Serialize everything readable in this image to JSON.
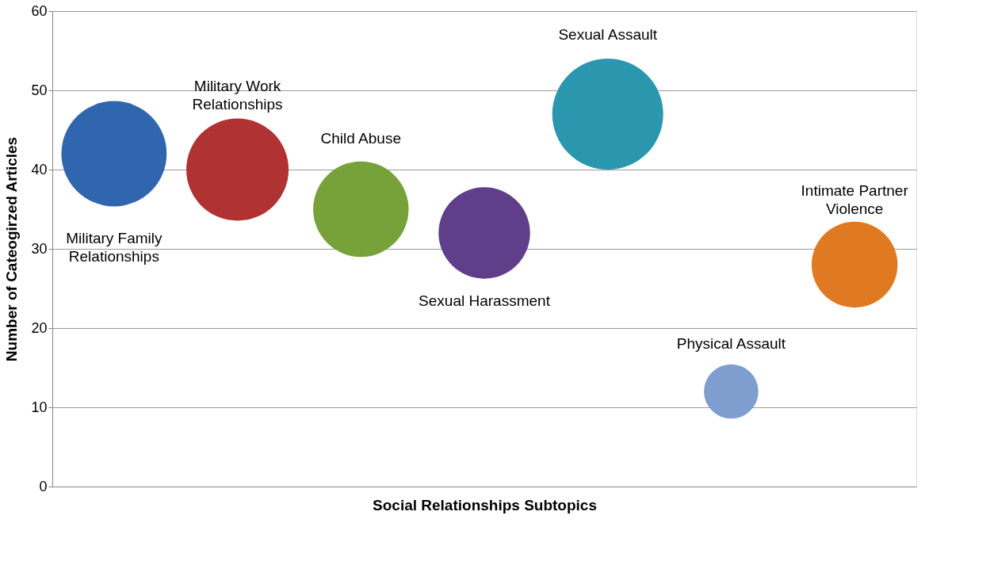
{
  "chart_data": {
    "type": "bubble",
    "xlabel": "Social Relationships Subtopics",
    "ylabel": "Number of Cateogirzed Articles",
    "categories": [
      null,
      null,
      null,
      null,
      null,
      null,
      null
    ],
    "ylim": [
      0,
      60
    ],
    "yticks": [
      0,
      10,
      20,
      30,
      40,
      50,
      60
    ],
    "grid": "y",
    "tick_labels": "y",
    "series": [
      {
        "name": "Military Family Relationships",
        "color": "#2f66ad",
        "values": [
          42,
          null,
          null,
          null,
          null,
          null,
          null
        ],
        "sizes": [
          0.9,
          null,
          null,
          null,
          null,
          null,
          null
        ]
      },
      {
        "name": "Military Work Relationships",
        "color": "#b03232",
        "values": [
          null,
          40,
          null,
          null,
          null,
          null,
          null
        ],
        "sizes": [
          null,
          0.85,
          null,
          null,
          null,
          null,
          null
        ]
      },
      {
        "name": "Child Abuse",
        "color": "#77a23a",
        "values": [
          null,
          null,
          35,
          null,
          null,
          null,
          null
        ],
        "sizes": [
          null,
          null,
          0.74,
          null,
          null,
          null,
          null
        ]
      },
      {
        "name": "Sexual Harassment",
        "color": "#5f3f8a",
        "values": [
          null,
          null,
          null,
          32,
          null,
          null,
          null
        ],
        "sizes": [
          null,
          null,
          null,
          0.68,
          null,
          null,
          null
        ]
      },
      {
        "name": "Sexual Assault",
        "color": "#2a97ae",
        "values": [
          null,
          null,
          null,
          null,
          47,
          null,
          null
        ],
        "sizes": [
          null,
          null,
          null,
          null,
          1,
          null,
          null
        ]
      },
      {
        "name": "Physical Assault",
        "color": "#7f9dcf",
        "values": [
          null,
          null,
          null,
          null,
          null,
          12,
          null
        ],
        "sizes": [
          null,
          null,
          null,
          null,
          null,
          0.24,
          null
        ]
      },
      {
        "name": "Intimate Partner Violence",
        "color": "#e07a22",
        "values": [
          null,
          null,
          null,
          null,
          null,
          null,
          28
        ],
        "sizes": [
          null,
          null,
          null,
          null,
          null,
          null,
          0.6
        ]
      }
    ]
  }
}
